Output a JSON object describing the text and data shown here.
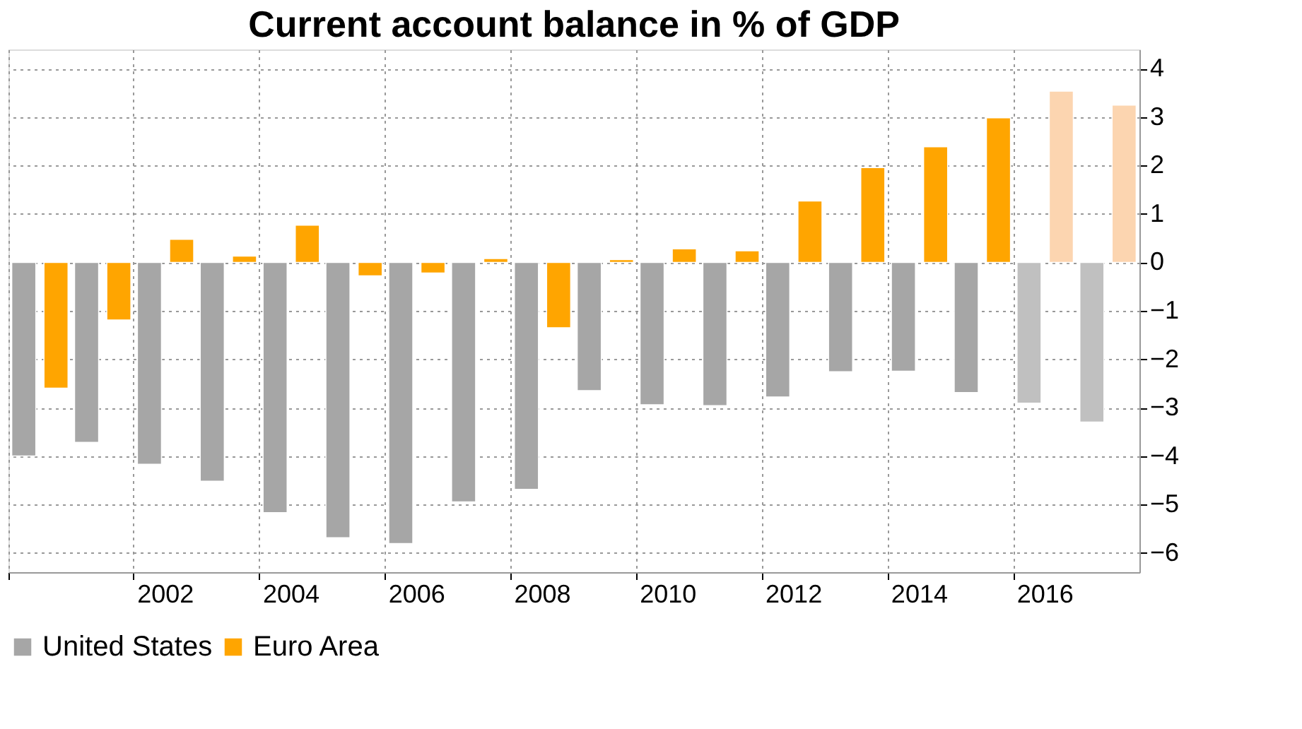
{
  "chart_data": {
    "type": "bar",
    "title": "Current account balance in % of GDP",
    "categories": [
      null,
      null,
      "2002",
      null,
      "2004",
      null,
      "2006",
      null,
      "2008",
      null,
      "2010",
      null,
      "2012",
      null,
      "2014",
      null,
      "2016",
      null
    ],
    "series": [
      {
        "name": "United States",
        "color": "#a6a6a6",
        "colors": [
          "#a6a6a6",
          "#a6a6a6",
          "#a6a6a6",
          "#a6a6a6",
          "#a6a6a6",
          "#a6a6a6",
          "#a6a6a6",
          "#a6a6a6",
          "#a6a6a6",
          "#a6a6a6",
          "#a6a6a6",
          "#a6a6a6",
          "#a6a6a6",
          "#a6a6a6",
          "#a6a6a6",
          "#a6a6a6",
          "#c0c0c0",
          "#c0c0c0"
        ],
        "values": [
          -4.0,
          -3.72,
          -4.17,
          -4.52,
          -5.17,
          -5.69,
          -5.81,
          -4.95,
          -4.69,
          -2.65,
          -2.94,
          -2.96,
          -2.78,
          -2.26,
          -2.25,
          -2.69,
          -2.91,
          -3.3
        ]
      },
      {
        "name": "Euro Area",
        "color": "#ffa500",
        "colors": [
          "#ffa500",
          "#ffa500",
          "#ffa500",
          "#ffa500",
          "#ffa500",
          "#ffa500",
          "#ffa500",
          "#ffa500",
          "#ffa500",
          "#ffa500",
          "#ffa500",
          "#ffa500",
          "#ffa500",
          "#ffa500",
          "#ffa500",
          "#ffa500",
          "#fcd5b0",
          "#fcd5b0"
        ],
        "values": [
          -2.6,
          -1.19,
          0.48,
          0.13,
          0.77,
          -0.28,
          -0.22,
          0.08,
          -1.35,
          0.06,
          0.28,
          0.24,
          1.27,
          1.96,
          2.39,
          2.99,
          3.54,
          3.25
        ]
      }
    ],
    "ylim": [
      -6.4,
      4.4
    ],
    "yticks": [
      -6,
      -5,
      -4,
      -3,
      -2,
      -1,
      0,
      1,
      2,
      3,
      4
    ],
    "grid": true,
    "legend": "bottom"
  }
}
